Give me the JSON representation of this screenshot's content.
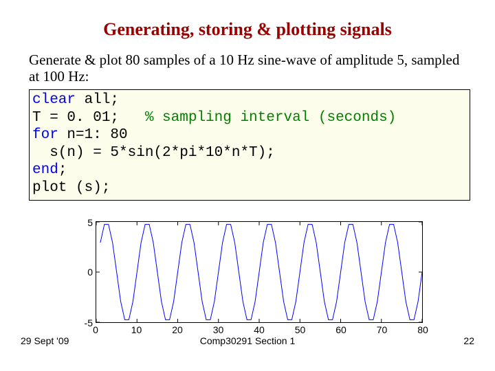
{
  "title": {
    "text": "Generating, storing & plotting signals",
    "color": "#990000",
    "fontsize": 26
  },
  "description": "Generate & plot 80 samples of a 10 Hz sine-wave of amplitude 5, sampled at 100 Hz:",
  "code": {
    "lines": [
      {
        "segments": [
          {
            "t": "clear ",
            "c": "kw"
          },
          {
            "t": "all;",
            "c": ""
          }
        ]
      },
      {
        "segments": [
          {
            "t": "T = 0. 01;   ",
            "c": ""
          },
          {
            "t": "% sampling interval (seconds)",
            "c": "cm"
          }
        ]
      },
      {
        "segments": [
          {
            "t": "for ",
            "c": "kw"
          },
          {
            "t": "n=1: 80",
            "c": ""
          }
        ]
      },
      {
        "segments": [
          {
            "t": "  s(n) = 5*sin(2*pi*10*n*T);",
            "c": ""
          }
        ]
      },
      {
        "segments": [
          {
            "t": "end",
            "c": "kw"
          },
          {
            "t": ";",
            "c": ""
          }
        ]
      },
      {
        "segments": [
          {
            "t": "plot (s);",
            "c": ""
          }
        ]
      }
    ],
    "keyword_color": "#0000ff",
    "comment_color": "#008000",
    "bg_color": "#fdfdeb",
    "font_family": "Courier New"
  },
  "chart": {
    "type": "line",
    "xlim": [
      0,
      80
    ],
    "ylim": [
      -5,
      5
    ],
    "xtick_step": 10,
    "ytick_step": 5,
    "x_ticks": [
      0,
      10,
      20,
      30,
      40,
      50,
      60,
      70,
      80
    ],
    "y_ticks": [
      -5,
      0,
      5
    ],
    "line_color": "#0000ff",
    "line_width": 1,
    "background_color": "#ffffff",
    "axes_color": "#000000",
    "tick_font": "Arial",
    "tick_fontsize": 14,
    "signal": {
      "n_samples": 80,
      "amplitude": 5,
      "freq_hz": 10,
      "sample_interval_s": 0.01
    }
  },
  "footer": {
    "date": "29 Sept '09",
    "center": "Comp30291 Section 1",
    "page": "22",
    "font": "Arial",
    "fontsize": 14
  }
}
